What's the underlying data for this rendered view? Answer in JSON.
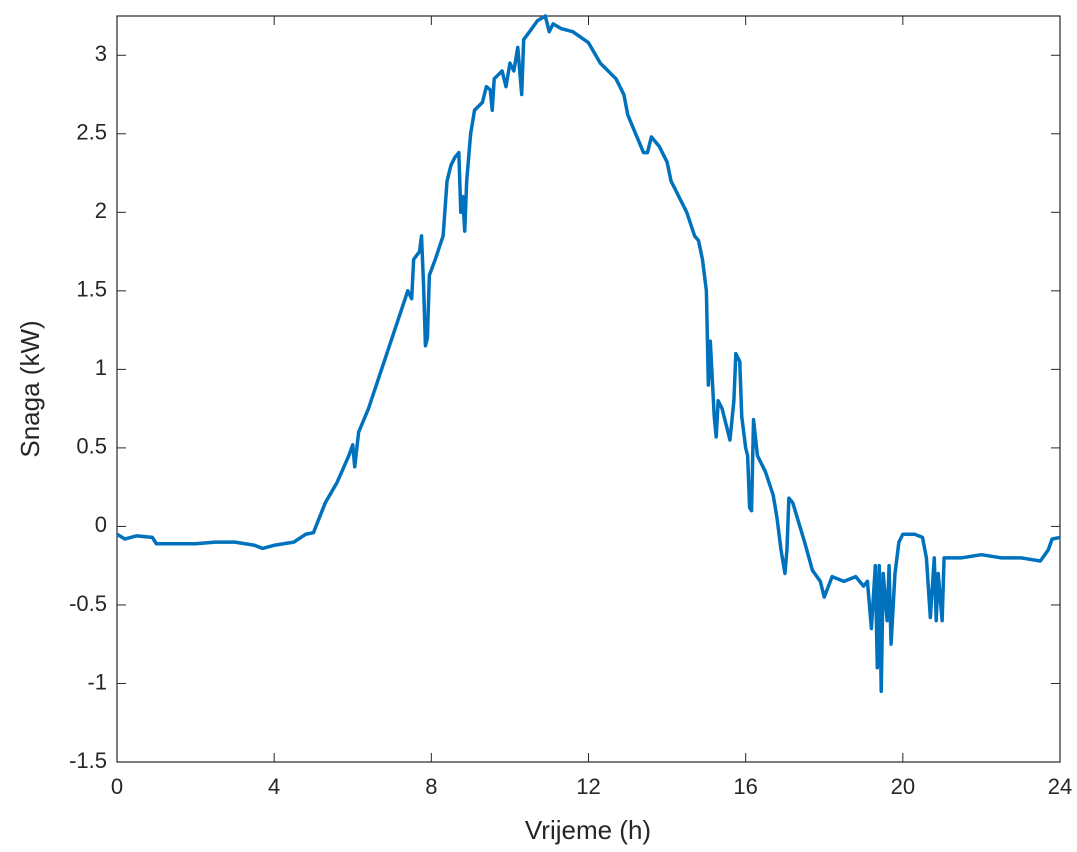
{
  "chart_data": {
    "type": "line",
    "xlabel": "Vrijeme (h)",
    "ylabel": "Snaga (kW)",
    "x": [
      0,
      0.2,
      0.5,
      0.9,
      1.0,
      1.5,
      2,
      2.5,
      3,
      3.5,
      3.7,
      4,
      4.5,
      4.8,
      5,
      5.3,
      5.6,
      5.9,
      6.0,
      6.05,
      6.15,
      6.4,
      6.6,
      6.8,
      7.0,
      7.2,
      7.4,
      7.5,
      7.55,
      7.7,
      7.75,
      7.8,
      7.85,
      7.9,
      7.95,
      8.1,
      8.3,
      8.4,
      8.5,
      8.6,
      8.7,
      8.75,
      8.8,
      8.85,
      8.9,
      9.0,
      9.1,
      9.3,
      9.4,
      9.5,
      9.55,
      9.6,
      9.8,
      9.9,
      10.0,
      10.1,
      10.2,
      10.3,
      10.35,
      10.5,
      10.7,
      10.9,
      11.0,
      11.1,
      11.3,
      11.6,
      12,
      12.3,
      12.7,
      12.9,
      13.0,
      13.2,
      13.4,
      13.5,
      13.6,
      13.8,
      14.0,
      14.1,
      14.3,
      14.5,
      14.7,
      14.8,
      14.9,
      15.0,
      15.05,
      15.1,
      15.2,
      15.25,
      15.3,
      15.4,
      15.5,
      15.6,
      15.7,
      15.75,
      15.85,
      15.9,
      16.0,
      16.05,
      16.1,
      16.15,
      16.2,
      16.3,
      16.5,
      16.7,
      16.8,
      16.9,
      17.0,
      17.05,
      17.1,
      17.2,
      17.5,
      17.7,
      17.9,
      18.0,
      18.2,
      18.5,
      18.8,
      19.0,
      19.1,
      19.2,
      19.3,
      19.35,
      19.4,
      19.45,
      19.5,
      19.6,
      19.65,
      19.7,
      19.8,
      19.9,
      20.0,
      20.3,
      20.5,
      20.6,
      20.7,
      20.8,
      20.85,
      20.9,
      21.0,
      21.05,
      21.5,
      22,
      22.5,
      23,
      23.5,
      23.7,
      23.8,
      24
    ],
    "series": [
      {
        "name": "Snaga",
        "color": "#0072bd",
        "values": [
          -0.05,
          -0.08,
          -0.06,
          -0.07,
          -0.11,
          -0.11,
          -0.11,
          -0.1,
          -0.1,
          -0.12,
          -0.14,
          -0.12,
          -0.1,
          -0.05,
          -0.04,
          0.15,
          0.28,
          0.45,
          0.52,
          0.38,
          0.6,
          0.75,
          0.9,
          1.05,
          1.2,
          1.35,
          1.5,
          1.45,
          1.7,
          1.75,
          1.85,
          1.55,
          1.15,
          1.2,
          1.6,
          1.7,
          1.85,
          2.2,
          2.3,
          2.35,
          2.38,
          2.0,
          2.1,
          1.88,
          2.2,
          2.5,
          2.65,
          2.7,
          2.8,
          2.78,
          2.65,
          2.85,
          2.9,
          2.8,
          2.95,
          2.9,
          3.05,
          2.75,
          3.1,
          3.15,
          3.22,
          3.25,
          3.15,
          3.2,
          3.17,
          3.15,
          3.08,
          2.95,
          2.85,
          2.75,
          2.62,
          2.5,
          2.38,
          2.38,
          2.48,
          2.42,
          2.32,
          2.2,
          2.1,
          2.0,
          1.85,
          1.82,
          1.7,
          1.5,
          0.9,
          1.18,
          0.7,
          0.57,
          0.8,
          0.75,
          0.65,
          0.55,
          0.8,
          1.1,
          1.05,
          0.7,
          0.5,
          0.45,
          0.12,
          0.1,
          0.68,
          0.45,
          0.35,
          0.2,
          0.05,
          -0.15,
          -0.3,
          -0.15,
          0.18,
          0.15,
          -0.1,
          -0.28,
          -0.35,
          -0.45,
          -0.32,
          -0.35,
          -0.32,
          -0.38,
          -0.35,
          -0.65,
          -0.25,
          -0.9,
          -0.25,
          -1.05,
          -0.3,
          -0.6,
          -0.25,
          -0.75,
          -0.3,
          -0.1,
          -0.05,
          -0.05,
          -0.07,
          -0.2,
          -0.58,
          -0.2,
          -0.6,
          -0.3,
          -0.6,
          -0.2,
          -0.2,
          -0.18,
          -0.2,
          -0.2,
          -0.22,
          -0.15,
          -0.08,
          -0.07
        ]
      }
    ],
    "xlim": [
      0,
      24
    ],
    "xticks": [
      0,
      4,
      8,
      12,
      16,
      20,
      24
    ],
    "ylim": [
      -1.5,
      3.25
    ],
    "yticks": [
      -1.5,
      -1,
      -0.5,
      0,
      0.5,
      1,
      1.5,
      2,
      2.5,
      3
    ],
    "grid": false
  }
}
